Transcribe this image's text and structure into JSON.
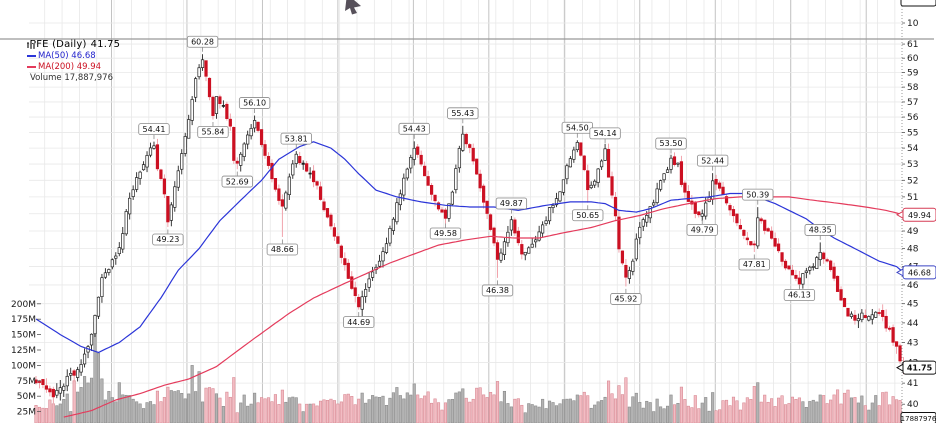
{
  "legend": {
    "symbol": "PFE (Daily)",
    "last": "41.75",
    "ma50_label": "MA(50) 46.68",
    "ma200_label": "MA(200) 49.94",
    "volume_label": "Volume 17,887,976"
  },
  "axis_boxes": {
    "last_price": "41.75",
    "ma50_value": "46.68",
    "ma200_value": "49.94",
    "last_volume": "17887976"
  },
  "upper_panel": {
    "tick_label": "10"
  },
  "chart_data": {
    "type": "candlestick",
    "title": "PFE (Daily)",
    "last_close": 41.75,
    "ma50_value": 46.68,
    "ma200_value": 49.94,
    "last_volume": "17,887,976",
    "scale": "log",
    "grid": true,
    "price_axis_ticks": [
      61,
      60,
      59,
      58,
      57,
      56,
      55,
      54,
      53,
      52,
      51,
      50,
      49,
      48,
      47,
      46,
      45,
      44,
      43,
      42,
      41,
      40
    ],
    "volume_axis_ticks": [
      {
        "label": "200M",
        "v": 200
      },
      {
        "label": "175M",
        "v": 175
      },
      {
        "label": "150M",
        "v": 150
      },
      {
        "label": "125M",
        "v": 125
      },
      {
        "label": "100M",
        "v": 100
      },
      {
        "label": "75M",
        "v": 75
      },
      {
        "label": "50M",
        "v": 50
      },
      {
        "label": "25M",
        "v": 25
      }
    ],
    "n_candles": 251,
    "close_waypoints": [
      [
        0,
        41.0
      ],
      [
        2,
        40.8
      ],
      [
        5,
        40.4
      ],
      [
        8,
        41.0
      ],
      [
        13,
        41.8
      ],
      [
        16,
        43.5
      ],
      [
        18,
        45.3
      ],
      [
        19,
        46.3
      ],
      [
        22,
        47.3
      ],
      [
        24,
        48.0
      ],
      [
        26,
        50.0
      ],
      [
        28,
        51.5
      ],
      [
        30,
        52.5
      ],
      [
        33,
        53.9
      ],
      [
        34,
        54.2
      ],
      [
        35,
        52.8
      ],
      [
        37,
        51.2
      ],
      [
        38,
        49.4
      ],
      [
        40,
        51.5
      ],
      [
        42,
        53.5
      ],
      [
        44,
        56.0
      ],
      [
        46,
        58.5
      ],
      [
        48,
        60.0
      ],
      [
        50,
        57.5
      ],
      [
        51,
        56.0
      ],
      [
        52,
        57.2
      ],
      [
        54,
        56.7
      ],
      [
        56,
        55.3
      ],
      [
        57,
        53.3
      ],
      [
        58,
        52.9
      ],
      [
        60,
        54.2
      ],
      [
        62,
        55.3
      ],
      [
        63,
        55.8
      ],
      [
        65,
        54.3
      ],
      [
        67,
        52.8
      ],
      [
        69,
        51.5
      ],
      [
        71,
        50.3
      ],
      [
        73,
        52.2
      ],
      [
        75,
        53.6
      ],
      [
        77,
        52.9
      ],
      [
        79,
        52.4
      ],
      [
        81,
        51.6
      ],
      [
        83,
        50.3
      ],
      [
        85,
        49.3
      ],
      [
        87,
        48.2
      ],
      [
        89,
        47.0
      ],
      [
        91,
        45.9
      ],
      [
        93,
        44.9
      ],
      [
        95,
        45.9
      ],
      [
        97,
        46.6
      ],
      [
        99,
        47.4
      ],
      [
        101,
        48.4
      ],
      [
        103,
        49.8
      ],
      [
        105,
        51.3
      ],
      [
        107,
        52.8
      ],
      [
        109,
        54.1
      ],
      [
        111,
        52.9
      ],
      [
        113,
        51.7
      ],
      [
        115,
        50.8
      ],
      [
        117,
        50.0
      ],
      [
        118,
        49.8
      ],
      [
        120,
        51.2
      ],
      [
        121,
        52.8
      ],
      [
        123,
        54.9
      ],
      [
        125,
        53.9
      ],
      [
        127,
        52.4
      ],
      [
        129,
        50.8
      ],
      [
        131,
        49.2
      ],
      [
        133,
        47.3
      ],
      [
        135,
        48.3
      ],
      [
        137,
        49.6
      ],
      [
        139,
        48.3
      ],
      [
        140,
        47.8
      ],
      [
        142,
        48.1
      ],
      [
        144,
        48.6
      ],
      [
        146,
        49.3
      ],
      [
        148,
        50.2
      ],
      [
        150,
        50.8
      ],
      [
        152,
        52.0
      ],
      [
        154,
        53.5
      ],
      [
        156,
        54.2
      ],
      [
        158,
        52.7
      ],
      [
        159,
        51.4
      ],
      [
        161,
        52.1
      ],
      [
        163,
        53.3
      ],
      [
        164,
        53.9
      ],
      [
        165,
        52.2
      ],
      [
        167,
        49.9
      ],
      [
        168,
        47.9
      ],
      [
        170,
        46.4
      ],
      [
        172,
        47.2
      ],
      [
        173,
        48.6
      ],
      [
        176,
        50.0
      ],
      [
        178,
        50.8
      ],
      [
        180,
        51.9
      ],
      [
        182,
        52.8
      ],
      [
        183,
        53.2
      ],
      [
        185,
        52.9
      ],
      [
        186,
        51.9
      ],
      [
        188,
        50.8
      ],
      [
        190,
        50.1
      ],
      [
        192,
        50.0
      ],
      [
        194,
        51.0
      ],
      [
        195,
        52.1
      ],
      [
        197,
        51.4
      ],
      [
        199,
        50.7
      ],
      [
        201,
        49.9
      ],
      [
        203,
        49.2
      ],
      [
        205,
        48.6
      ],
      [
        207,
        48.1
      ],
      [
        208,
        49.9
      ],
      [
        210,
        49.2
      ],
      [
        212,
        48.6
      ],
      [
        214,
        47.8
      ],
      [
        216,
        47.0
      ],
      [
        218,
        46.5
      ],
      [
        220,
        46.2
      ],
      [
        222,
        46.7
      ],
      [
        224,
        47.1
      ],
      [
        226,
        47.7
      ],
      [
        228,
        47.2
      ],
      [
        230,
        46.2
      ],
      [
        232,
        45.2
      ],
      [
        234,
        44.5
      ],
      [
        236,
        44.1
      ],
      [
        238,
        44.4
      ],
      [
        240,
        44.3
      ],
      [
        242,
        44.6
      ],
      [
        244,
        44.2
      ],
      [
        246,
        43.5
      ],
      [
        248,
        42.7
      ],
      [
        250,
        41.75
      ]
    ],
    "ma50_waypoints": [
      [
        0,
        44.2
      ],
      [
        7,
        43.4
      ],
      [
        13,
        42.8
      ],
      [
        18,
        42.5
      ],
      [
        24,
        43.0
      ],
      [
        30,
        43.8
      ],
      [
        36,
        45.3
      ],
      [
        41,
        46.8
      ],
      [
        47,
        48.0
      ],
      [
        53,
        49.6
      ],
      [
        59,
        50.8
      ],
      [
        65,
        52.0
      ],
      [
        70,
        53.3
      ],
      [
        76,
        54.1
      ],
      [
        80,
        54.4
      ],
      [
        85,
        54.0
      ],
      [
        89,
        53.3
      ],
      [
        93,
        52.4
      ],
      [
        98,
        51.4
      ],
      [
        104,
        51.0
      ],
      [
        111,
        50.7
      ],
      [
        118,
        50.5
      ],
      [
        125,
        50.4
      ],
      [
        132,
        50.4
      ],
      [
        139,
        50.2
      ],
      [
        147,
        50.5
      ],
      [
        154,
        50.7
      ],
      [
        160,
        50.7
      ],
      [
        164,
        50.6
      ],
      [
        168,
        50.2
      ],
      [
        173,
        50.1
      ],
      [
        177,
        50.3
      ],
      [
        183,
        50.8
      ],
      [
        188,
        50.9
      ],
      [
        194,
        51.0
      ],
      [
        200,
        51.2
      ],
      [
        204,
        51.2
      ],
      [
        209,
        50.9
      ],
      [
        213,
        50.6
      ],
      [
        217,
        50.2
      ],
      [
        222,
        49.7
      ],
      [
        226,
        49.1
      ],
      [
        230,
        48.6
      ],
      [
        235,
        48.1
      ],
      [
        239,
        47.7
      ],
      [
        243,
        47.3
      ],
      [
        248,
        47.0
      ],
      [
        250,
        46.68
      ]
    ],
    "ma200_waypoints": [
      [
        8,
        39.4
      ],
      [
        16,
        39.7
      ],
      [
        23,
        40.2
      ],
      [
        30,
        40.5
      ],
      [
        37,
        40.9
      ],
      [
        44,
        41.2
      ],
      [
        52,
        41.8
      ],
      [
        59,
        42.7
      ],
      [
        66,
        43.6
      ],
      [
        73,
        44.5
      ],
      [
        80,
        45.3
      ],
      [
        88,
        46.0
      ],
      [
        95,
        46.6
      ],
      [
        102,
        47.2
      ],
      [
        109,
        47.7
      ],
      [
        116,
        48.2
      ],
      [
        124,
        48.5
      ],
      [
        131,
        48.7
      ],
      [
        138,
        48.6
      ],
      [
        145,
        48.6
      ],
      [
        152,
        48.9
      ],
      [
        160,
        49.2
      ],
      [
        167,
        49.6
      ],
      [
        174,
        49.9
      ],
      [
        181,
        50.3
      ],
      [
        188,
        50.6
      ],
      [
        196,
        50.9
      ],
      [
        203,
        51.0
      ],
      [
        210,
        51.0
      ],
      [
        217,
        51.0
      ],
      [
        224,
        50.8
      ],
      [
        232,
        50.6
      ],
      [
        239,
        50.4
      ],
      [
        245,
        50.2
      ],
      [
        250,
        49.94
      ]
    ],
    "annotations": [
      {
        "i": 34,
        "v": 54.41,
        "text": "54.41",
        "side": "above"
      },
      {
        "i": 38,
        "v": 49.23,
        "text": "49.23",
        "side": "below"
      },
      {
        "i": 48,
        "v": 60.28,
        "text": "60.28",
        "side": "above"
      },
      {
        "i": 51,
        "v": 55.84,
        "text": "55.84",
        "side": "below"
      },
      {
        "i": 58,
        "v": 52.69,
        "text": "52.69",
        "side": "below"
      },
      {
        "i": 63,
        "v": 56.1,
        "text": "56.10",
        "side": "above"
      },
      {
        "i": 71,
        "v": 48.66,
        "text": "48.66",
        "side": "below"
      },
      {
        "i": 75,
        "v": 53.81,
        "text": "53.81",
        "side": "above"
      },
      {
        "i": 93,
        "v": 44.69,
        "text": "44.69",
        "side": "below"
      },
      {
        "i": 109,
        "v": 54.43,
        "text": "54.43",
        "side": "above"
      },
      {
        "i": 118,
        "v": 49.58,
        "text": "49.58",
        "side": "below"
      },
      {
        "i": 123,
        "v": 55.43,
        "text": "55.43",
        "side": "above"
      },
      {
        "i": 133,
        "v": 46.38,
        "text": "46.38",
        "side": "below"
      },
      {
        "i": 137,
        "v": 49.87,
        "text": "49.87",
        "side": "above"
      },
      {
        "i": 156,
        "v": 54.5,
        "text": "54.50",
        "side": "above"
      },
      {
        "i": 159,
        "v": 50.65,
        "text": "50.65",
        "side": "below"
      },
      {
        "i": 164,
        "v": 54.14,
        "text": "54.14",
        "side": "above"
      },
      {
        "i": 170,
        "v": 45.92,
        "text": "45.92",
        "side": "below"
      },
      {
        "i": 183,
        "v": 53.5,
        "text": "53.50",
        "side": "above"
      },
      {
        "i": 192,
        "v": 49.79,
        "text": "49.79",
        "side": "below"
      },
      {
        "i": 195,
        "v": 52.44,
        "text": "52.44",
        "side": "above"
      },
      {
        "i": 207,
        "v": 47.81,
        "text": "47.81",
        "side": "below"
      },
      {
        "i": 208,
        "v": 50.39,
        "text": "50.39",
        "side": "above"
      },
      {
        "i": 220,
        "v": 46.13,
        "text": "46.13",
        "side": "below"
      },
      {
        "i": 226,
        "v": 48.35,
        "text": "48.35",
        "side": "above"
      }
    ],
    "volume_spikes": {
      "17": 170,
      "18": 120,
      "45": 100,
      "47": 90,
      "63": 55,
      "71": 60,
      "109": 70,
      "123": 62,
      "133": 74,
      "156": 52,
      "170": 80,
      "183": 52,
      "195": 56,
      "207": 66,
      "208": 72,
      "226": 52,
      "234": 60,
      "244": 56,
      "250": 18
    },
    "colors": {
      "up_fill": "#ffffff",
      "up_stroke": "#222222",
      "down_fill": "#cc1022",
      "down_wick": "#f09aa4",
      "black_fill": "#111111",
      "ma50": "#2b35d8",
      "ma200": "#e43b5c",
      "vol_up": "#b3b3b3",
      "vol_up_stroke": "#8a8a8a",
      "vol_down": "#f2bcc3",
      "vol_down_stroke": "#d98a94",
      "grid": "#e8e8e8",
      "grid_dark": "#bdbdbd",
      "separator": "#999999",
      "axis_text": "#1a1a1a"
    }
  }
}
